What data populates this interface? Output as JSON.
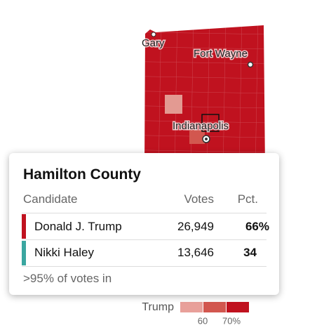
{
  "map": {
    "cities": [
      "Gary",
      "Fort Wayne",
      "Indianapolis"
    ]
  },
  "tooltip": {
    "title": "Hamilton County",
    "headers": [
      "Candidate",
      "Votes",
      "Pct."
    ],
    "rows": [
      [
        "Donald J. Trump",
        "26,949",
        "66%"
      ],
      [
        "Nikki Haley",
        "13,646",
        "34"
      ]
    ],
    "footer": ">95% of votes in"
  },
  "legend": {
    "title": "Trump",
    "labels": [
      "60",
      "70%"
    ]
  }
}
